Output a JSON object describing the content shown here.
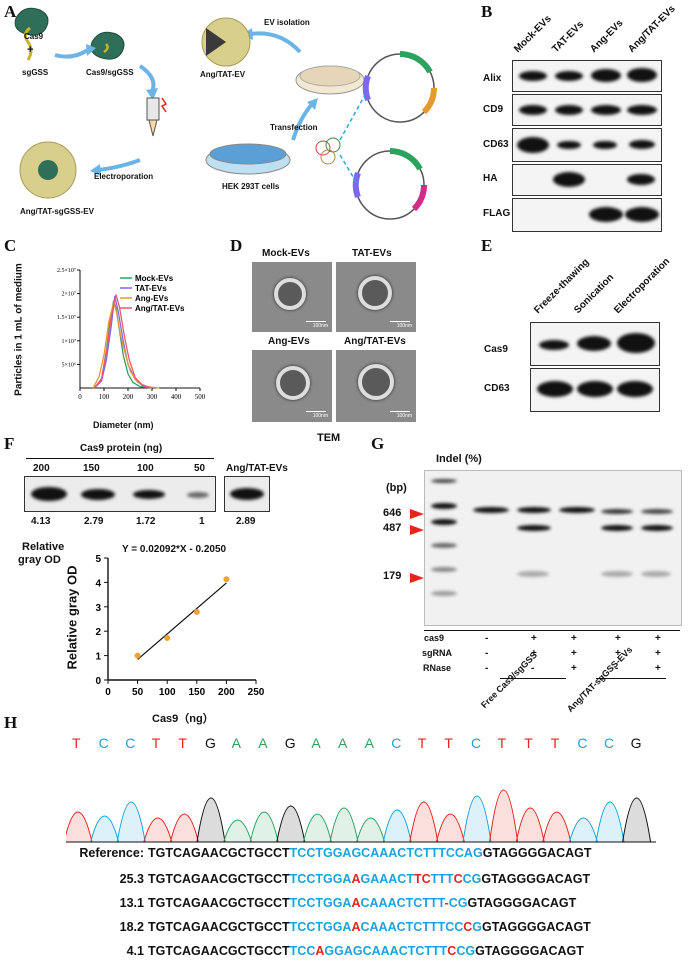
{
  "panels": [
    "A",
    "B",
    "C",
    "D",
    "E",
    "F",
    "G",
    "H"
  ],
  "panelA": {
    "cas9": "Cas9",
    "plus": "+",
    "sggss": "sgGSS",
    "complex": "Cas9/sgGSS",
    "ang_tat_ev": "Ang/TAT-EV",
    "ev_isolation": "EV isolation",
    "transfection": "Transfection",
    "hek": "HEK 293T cells",
    "electroporation": "Electroporation",
    "final": "Ang/TAT-sgGSS-EV"
  },
  "panelB": {
    "columns": [
      "Mock-EVs",
      "TAT-EVs",
      "Ang-EVs",
      "Ang/TAT-EVs"
    ],
    "rows": [
      "Alix",
      "CD9",
      "CD63",
      "HA",
      "FLAG"
    ]
  },
  "panelC": {
    "ylabel": "Particles in 1 mL of medium",
    "xlabel": "Diameter (nm)",
    "yticks": [
      "5×10⁶",
      "1×10⁷",
      "1.5×10⁷",
      "2×10⁷",
      "2.5×10⁷"
    ],
    "xticks": [
      "0",
      "100",
      "200",
      "300",
      "400",
      "500"
    ],
    "legend": [
      "Mock-EVs",
      "TAT-EVs",
      "Ang-EVs",
      "Ang/TAT-EVs"
    ],
    "colors": [
      "#2ca25f",
      "#7b68ee",
      "#e69a2e",
      "#f0566e"
    ]
  },
  "panelD": {
    "labels": [
      "Mock-EVs",
      "TAT-EVs",
      "Ang-EVs",
      "Ang/TAT-EVs"
    ],
    "scale": "100nm",
    "caption": "TEM"
  },
  "panelE": {
    "columns": [
      "Freeze-thawing",
      "Sonication",
      "Electroporation"
    ],
    "rows": [
      "Cas9",
      "CD63"
    ]
  },
  "panelF": {
    "header": "Cas9 protein (ng)",
    "lanes": [
      "200",
      "150",
      "100",
      "50",
      "Ang/TAT-EVs"
    ],
    "values": [
      "4.13",
      "2.79",
      "1.72",
      "1",
      "2.89"
    ],
    "side_label_1": "Relative",
    "side_label_2": "gray OD",
    "equation": "Y = 0.02092*X - 0.2050",
    "ylabel": "Relative gray OD",
    "xlabel": "Cas9（ng）",
    "xticks": [
      "0",
      "50",
      "100",
      "150",
      "200",
      "250"
    ],
    "yticks": [
      "0",
      "1",
      "2",
      "3",
      "4",
      "5"
    ]
  },
  "chart_data": [
    {
      "type": "line",
      "ylabel": "Particles in 1 mL of medium",
      "xlabel": "Diameter (nm)",
      "xlim": [
        0,
        500
      ],
      "ylim": [
        0,
        25000000
      ],
      "series": [
        {
          "name": "Mock-EVs",
          "x": [
            60,
            90,
            110,
            125,
            140,
            150,
            165,
            180,
            200,
            220,
            250,
            300
          ],
          "y": [
            0,
            2000000,
            8000000,
            14000000,
            18500000,
            17000000,
            12000000,
            7000000,
            3000000,
            1200000,
            300000,
            0
          ]
        },
        {
          "name": "TAT-EVs",
          "x": [
            60,
            90,
            110,
            130,
            145,
            160,
            180,
            200,
            230,
            260,
            300
          ],
          "y": [
            0,
            1500000,
            6000000,
            13000000,
            19500000,
            16000000,
            10000000,
            5000000,
            1800000,
            500000,
            0
          ]
        },
        {
          "name": "Ang-EVs",
          "x": [
            55,
            80,
            100,
            120,
            140,
            150,
            170,
            190,
            210,
            240,
            280,
            330
          ],
          "y": [
            0,
            2500000,
            7000000,
            14000000,
            18000000,
            16500000,
            11000000,
            7000000,
            3500000,
            1200000,
            300000,
            0
          ]
        },
        {
          "name": "Ang/TAT-EVs",
          "x": [
            60,
            90,
            110,
            130,
            150,
            165,
            185,
            205,
            230,
            260,
            300
          ],
          "y": [
            0,
            2000000,
            7500000,
            15000000,
            19800000,
            17000000,
            11000000,
            6000000,
            2200000,
            600000,
            0
          ]
        }
      ]
    },
    {
      "type": "scatter",
      "xlabel": "Cas9（ng）",
      "ylabel": "Relative gray OD",
      "xlim": [
        0,
        250
      ],
      "ylim": [
        0,
        5
      ],
      "x": [
        50,
        100,
        150,
        200
      ],
      "y": [
        1,
        1.72,
        2.79,
        4.13
      ],
      "fit": {
        "slope": 0.02092,
        "intercept": -0.205
      }
    }
  ],
  "panelG": {
    "title": "Indel (%)",
    "bp": "(bp)",
    "markers": [
      "646",
      "487",
      "179"
    ],
    "rows": [
      "cas9",
      "sgRNA",
      "RNase"
    ],
    "signs": [
      [
        "-",
        "+",
        "+",
        "+",
        "+"
      ],
      [
        "-",
        "+",
        "+",
        "+",
        "+"
      ],
      [
        "-",
        "-",
        "+",
        "-",
        "+"
      ]
    ],
    "group1": "Free Cas9/sgGSS",
    "group2": "Ang/TAT-sgGSS-EVs"
  },
  "panelH": {
    "bases": [
      "T",
      "C",
      "C",
      "T",
      "T",
      "G",
      "A",
      "A",
      "G",
      "A",
      "A",
      "A",
      "C",
      "T",
      "T",
      "C",
      "T",
      "T",
      "T",
      "C",
      "C",
      "G"
    ],
    "reference_label": "Reference:",
    "sequences": [
      {
        "label": "Reference:",
        "parts": [
          [
            "blk",
            "TGTCAGAACGCTGCCT"
          ],
          [
            "blu",
            "TCCTGGAGCAAACTCTTTCCAG"
          ],
          [
            "blk",
            "GTAGGGGACAGT"
          ]
        ]
      },
      {
        "label": "25.3",
        "parts": [
          [
            "blk",
            "TGTCAGAACGCTGCCT"
          ],
          [
            "blu",
            "TCCTGGA"
          ],
          [
            "red",
            "A"
          ],
          [
            "blu",
            "GAAACT"
          ],
          [
            "red",
            "TC"
          ],
          [
            "blu",
            "TTT"
          ],
          [
            "red",
            "C"
          ],
          [
            "blu",
            "CG"
          ],
          [
            "blk",
            "GTAGGGGACAGT"
          ]
        ]
      },
      {
        "label": "13.1",
        "parts": [
          [
            "blk",
            "TGTCAGAACGCTGCCT"
          ],
          [
            "blu",
            "TCCTGGA"
          ],
          [
            "red",
            "A"
          ],
          [
            "blu",
            "CAAACTCTTT"
          ],
          [
            "red",
            "-"
          ],
          [
            "blu",
            "CG"
          ],
          [
            "blk",
            "GTAGGGGACAGT"
          ]
        ]
      },
      {
        "label": "18.2",
        "parts": [
          [
            "blk",
            "TGTCAGAACGCTGCCT"
          ],
          [
            "blu",
            "TCCTGGA"
          ],
          [
            "red",
            "A"
          ],
          [
            "blu",
            "CAAACTCTTTCC"
          ],
          [
            "red",
            "C"
          ],
          [
            "blu",
            "G"
          ],
          [
            "blk",
            "GTAGGGGACAGT"
          ]
        ]
      },
      {
        "label": "4.1",
        "parts": [
          [
            "blk",
            "TGTCAGAACGCTGCCT"
          ],
          [
            "blu",
            "TCC"
          ],
          [
            "red",
            "A"
          ],
          [
            "blu",
            "GGAGCAAACTCTTT"
          ],
          [
            "red",
            "C"
          ],
          [
            "blu",
            "CG"
          ],
          [
            "blk",
            "GTAGGGGACAGT"
          ]
        ]
      }
    ]
  }
}
